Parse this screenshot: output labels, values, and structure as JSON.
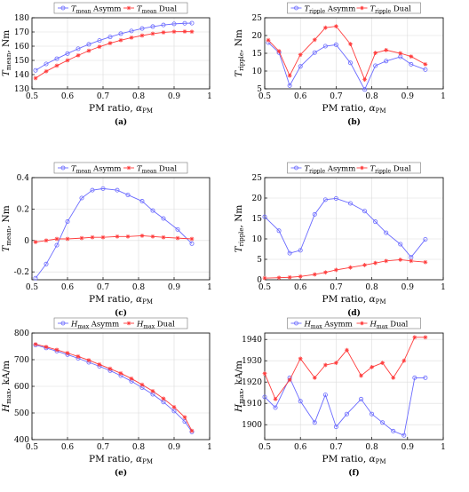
{
  "colors": {
    "asymm": "#6a6aff",
    "dual": "#ff3b3b",
    "axis": "#000000",
    "grid": "#dcdcdc"
  },
  "chart_data": [
    {
      "type": "line",
      "caption": "(a)",
      "xlabel": "PM ratio, αPM",
      "ylabel": "Tmean, Nm",
      "xlim": [
        0.5,
        1
      ],
      "ylim": [
        130,
        180
      ],
      "xticks": [
        "0.5",
        "0.6",
        "0.7",
        "0.8",
        "0.9",
        "1"
      ],
      "yticks": [
        "130",
        "140",
        "150",
        "160",
        "170",
        "180"
      ],
      "grid": true,
      "legend": "top",
      "x": [
        0.51,
        0.54,
        0.57,
        0.6,
        0.63,
        0.66,
        0.69,
        0.72,
        0.75,
        0.78,
        0.81,
        0.84,
        0.87,
        0.9,
        0.93,
        0.95
      ],
      "series": [
        {
          "name": "Tmean Asymm",
          "marker": "circle",
          "values": [
            143,
            147.5,
            151.2,
            154.8,
            158.2,
            161.3,
            164,
            166.5,
            168.8,
            170.7,
            172.4,
            173.8,
            174.9,
            175.7,
            176.1,
            176.2
          ]
        },
        {
          "name": "Tmean Dual",
          "marker": "star",
          "values": [
            137.5,
            142.3,
            146.3,
            150,
            153.5,
            156.8,
            159.6,
            162.1,
            164.2,
            166,
            167.5,
            168.8,
            169.7,
            170.2,
            170.3,
            170.2
          ]
        }
      ]
    },
    {
      "type": "line",
      "caption": "(b)",
      "xlabel": "PM ratio, αPM",
      "ylabel": "Tripple, Nm",
      "xlim": [
        0.5,
        1
      ],
      "ylim": [
        5,
        25
      ],
      "xticks": [
        "0.5",
        "0.6",
        "0.7",
        "0.8",
        "0.9",
        "1"
      ],
      "yticks": [
        "5",
        "10",
        "15",
        "20",
        "25"
      ],
      "grid": true,
      "legend": "top",
      "x": [
        0.51,
        0.54,
        0.57,
        0.6,
        0.64,
        0.67,
        0.7,
        0.74,
        0.78,
        0.81,
        0.84,
        0.88,
        0.91,
        0.95
      ],
      "series": [
        {
          "name": "Tripple Asymm",
          "marker": "circle",
          "values": [
            18,
            15.2,
            5.9,
            11.3,
            15.2,
            17,
            17.4,
            12.3,
            4.8,
            11.5,
            12.8,
            14,
            11.9,
            10.4
          ]
        },
        {
          "name": "Tripple Dual",
          "marker": "star",
          "values": [
            18.7,
            15.6,
            8.7,
            14.6,
            18.8,
            22.2,
            22.6,
            17.6,
            7.6,
            15.1,
            15.9,
            15,
            14.1,
            11.9
          ]
        }
      ]
    },
    {
      "type": "line",
      "caption": "(c)",
      "xlabel": "PM ratio, αPM",
      "ylabel": "Tmean, Nm",
      "xlim": [
        0.5,
        1
      ],
      "ylim": [
        -0.25,
        0.4
      ],
      "xticks": [
        "0.5",
        "0.6",
        "0.7",
        "0.8",
        "0.9",
        "1"
      ],
      "yticks": [
        "-0.2",
        "0",
        "0.2",
        "0.4"
      ],
      "grid": true,
      "legend": "top",
      "x": [
        0.51,
        0.54,
        0.57,
        0.6,
        0.64,
        0.67,
        0.7,
        0.74,
        0.77,
        0.81,
        0.84,
        0.87,
        0.91,
        0.95
      ],
      "series": [
        {
          "name": "Tmean Asymm",
          "marker": "circle",
          "values": [
            -0.24,
            -0.15,
            -0.03,
            0.12,
            0.27,
            0.32,
            0.33,
            0.32,
            0.29,
            0.25,
            0.19,
            0.14,
            0.07,
            -0.02
          ]
        },
        {
          "name": "Tmean Dual",
          "marker": "star",
          "values": [
            -0.01,
            0,
            0.01,
            0.01,
            0.015,
            0.02,
            0.02,
            0.025,
            0.025,
            0.03,
            0.025,
            0.02,
            0.015,
            0.01
          ]
        }
      ]
    },
    {
      "type": "line",
      "caption": "(d)",
      "xlabel": "PM ratio, αPM",
      "ylabel": "Tripple, Nm",
      "xlim": [
        0.5,
        1
      ],
      "ylim": [
        0,
        25
      ],
      "xticks": [
        "0.5",
        "0.6",
        "0.7",
        "0.8",
        "0.9",
        "1"
      ],
      "yticks": [
        "0",
        "5",
        "10",
        "15",
        "20",
        "25"
      ],
      "grid": true,
      "legend": "top",
      "x": [
        0.5,
        0.54,
        0.57,
        0.6,
        0.64,
        0.67,
        0.7,
        0.74,
        0.78,
        0.81,
        0.84,
        0.88,
        0.91,
        0.95
      ],
      "series": [
        {
          "name": "Tripple Asymm",
          "marker": "circle",
          "values": [
            15.4,
            12,
            6.5,
            7.2,
            16,
            19.6,
            19.9,
            18.7,
            16.8,
            14.2,
            11.5,
            8.7,
            5.5,
            9.9
          ]
        },
        {
          "name": "Tripple Dual",
          "marker": "star",
          "values": [
            0.4,
            0.5,
            0.6,
            0.8,
            1.3,
            1.8,
            2.4,
            3,
            3.6,
            4.1,
            4.6,
            4.9,
            4.6,
            4.3
          ]
        }
      ]
    },
    {
      "type": "line",
      "caption": "(e)",
      "xlabel": "PM ratio, αPM",
      "ylabel": "Hmax, kA/m",
      "xlim": [
        0.5,
        1
      ],
      "ylim": [
        400,
        800
      ],
      "xticks": [
        "0.5",
        "0.6",
        "0.7",
        "0.8",
        "0.9",
        "1"
      ],
      "yticks": [
        "400",
        "500",
        "600",
        "700",
        "800"
      ],
      "grid": true,
      "legend": "top",
      "x": [
        0.51,
        0.54,
        0.57,
        0.6,
        0.63,
        0.66,
        0.69,
        0.72,
        0.75,
        0.78,
        0.81,
        0.84,
        0.87,
        0.9,
        0.93,
        0.95
      ],
      "series": [
        {
          "name": "Hmax Asymm",
          "marker": "circle",
          "values": [
            755,
            744,
            732,
            719,
            705,
            690,
            675,
            659,
            640,
            619,
            595,
            570,
            541,
            507,
            468,
            429
          ]
        },
        {
          "name": "Hmax Dual",
          "marker": "star",
          "values": [
            758,
            748,
            737,
            725,
            712,
            698,
            682,
            666,
            649,
            629,
            606,
            582,
            554,
            522,
            484,
            433
          ]
        }
      ]
    },
    {
      "type": "line",
      "caption": "(f)",
      "xlabel": "PM ratio, αPM",
      "ylabel": "Hmax, kA/m",
      "xlim": [
        0.5,
        1
      ],
      "ylim": [
        1893,
        1943
      ],
      "xticks": [
        "0.5",
        "0.6",
        "0.7",
        "0.8",
        "0.9",
        "1"
      ],
      "yticks": [
        "1900",
        "1910",
        "1920",
        "1930",
        "1940"
      ],
      "grid": true,
      "legend": "top",
      "x": [
        0.5,
        0.53,
        0.57,
        0.6,
        0.64,
        0.67,
        0.7,
        0.73,
        0.77,
        0.8,
        0.83,
        0.86,
        0.89,
        0.92,
        0.95
      ],
      "series": [
        {
          "name": "Hmax Asymm",
          "marker": "circle",
          "values": [
            1913,
            1908,
            1922,
            1911,
            1901,
            1914,
            1899,
            1905,
            1912,
            1905,
            1901,
            1897,
            1895,
            1922,
            1922
          ]
        },
        {
          "name": "Hmax Dual",
          "marker": "star",
          "values": [
            1924,
            1912,
            1921,
            1931,
            1922,
            1928,
            1929,
            1935,
            1923,
            1927,
            1929,
            1922,
            1930,
            1941,
            1941
          ]
        }
      ]
    }
  ],
  "legends": [
    {
      "asymm": {
        "sym": "T",
        "sub": "mean",
        "rest": " Asymm"
      },
      "dual": {
        "sym": "T",
        "sub": "mean",
        "rest": " Dual"
      }
    },
    {
      "asymm": {
        "sym": "T",
        "sub": "ripple",
        "rest": " Asymm"
      },
      "dual": {
        "sym": "T",
        "sub": "ripple",
        "rest": " Dual"
      }
    },
    {
      "asymm": {
        "sym": "T",
        "sub": "mean",
        "rest": " Asymm"
      },
      "dual": {
        "sym": "T",
        "sub": "mean",
        "rest": " Dual"
      }
    },
    {
      "asymm": {
        "sym": "T",
        "sub": "ripple",
        "rest": " Asymm"
      },
      "dual": {
        "sym": "T",
        "sub": "ripple",
        "rest": " Dual"
      }
    },
    {
      "asymm": {
        "sym": "H",
        "sub": "max",
        "rest": " Asymm"
      },
      "dual": {
        "sym": "H",
        "sub": "max",
        "rest": " Dual"
      }
    },
    {
      "asymm": {
        "sym": "H",
        "sub": "max",
        "rest": " Asymm"
      },
      "dual": {
        "sym": "H",
        "sub": "max",
        "rest": " Dual"
      }
    }
  ],
  "ylabels": [
    {
      "sym": "T",
      "sub": "mean",
      "rest": ", Nm"
    },
    {
      "sym": "T",
      "sub": "ripple",
      "rest": ", Nm"
    },
    {
      "sym": "T",
      "sub": "mean",
      "rest": ", Nm"
    },
    {
      "sym": "T",
      "sub": "ripple",
      "rest": ", Nm"
    },
    {
      "sym": "H",
      "sub": "max",
      "rest": ", kA/m"
    },
    {
      "sym": "H",
      "sub": "max",
      "rest": ", kA/m"
    }
  ],
  "xlabel_parts": {
    "main": "PM ratio, ",
    "sym": "α",
    "sub": "PM"
  }
}
